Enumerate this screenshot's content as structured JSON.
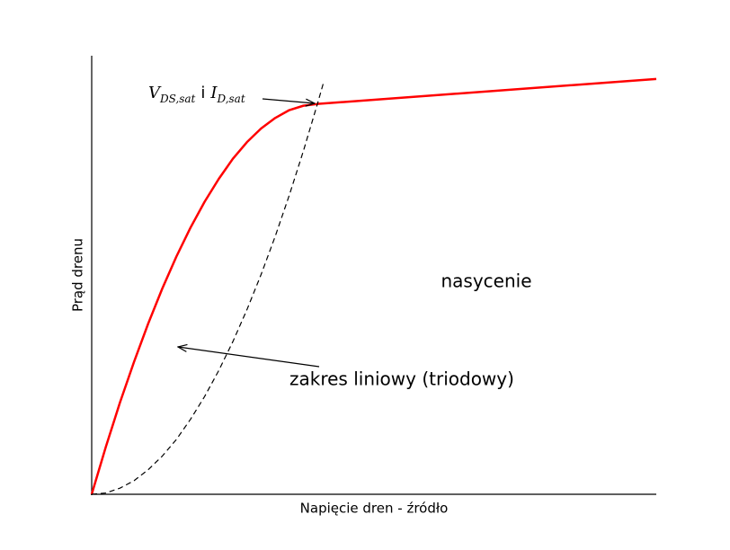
{
  "chart_data": {
    "type": "line",
    "xlabel": "Napięcie dren - źródło",
    "ylabel": "Prąd drenu",
    "xlim": [
      0,
      10
    ],
    "ylim": [
      0,
      10
    ],
    "series": [
      {
        "color": "#ff0000",
        "style": "solid",
        "x": [
          0,
          0.25,
          0.5,
          0.75,
          1,
          1.25,
          1.5,
          1.75,
          2,
          2.25,
          2.5,
          2.75,
          3,
          3.25,
          3.5,
          3.75,
          4,
          10
        ],
        "values": [
          0,
          1.08,
          2.09,
          3.02,
          3.89,
          4.69,
          5.42,
          6.08,
          6.67,
          7.19,
          7.65,
          8.03,
          8.34,
          8.58,
          8.76,
          8.86,
          8.9,
          9.47
        ]
      },
      {
        "color": "#000000",
        "style": "dashed",
        "x": [
          0,
          0.25,
          0.5,
          0.75,
          1,
          1.25,
          1.5,
          1.75,
          2,
          2.25,
          2.5,
          2.75,
          3,
          3.25,
          3.5,
          3.75,
          4,
          4.1
        ],
        "values": [
          0,
          0.03,
          0.14,
          0.31,
          0.56,
          0.87,
          1.25,
          1.71,
          2.23,
          2.82,
          3.48,
          4.21,
          5.01,
          5.88,
          6.82,
          7.83,
          8.91,
          9.36
        ]
      }
    ],
    "annotations": {
      "saturation_point": [
        "V",
        "DS,sat",
        "i",
        "I",
        "D,sat"
      ],
      "saturation_region": "nasycenie",
      "linear_region": "zakres liniowy (triodowy)"
    }
  }
}
